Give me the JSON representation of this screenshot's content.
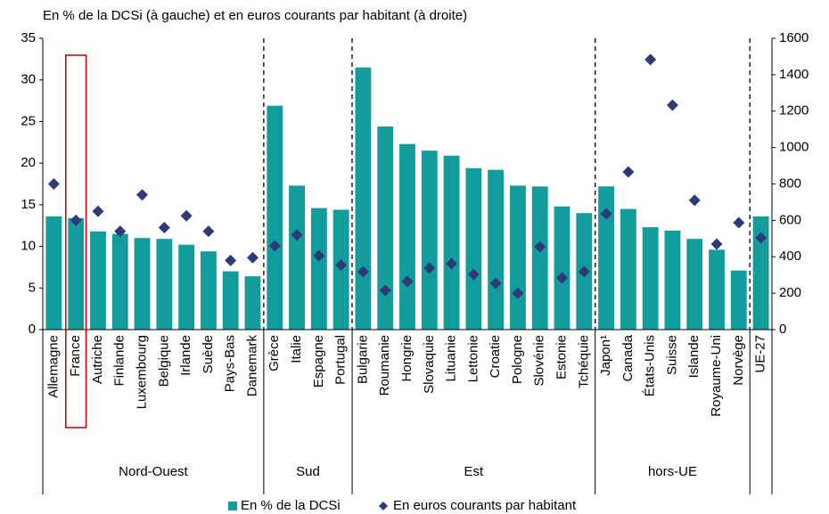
{
  "chart_data": {
    "type": "bar",
    "title": "En % de la DCSi (à gauche) et en euros courants par habitant (à droite)",
    "categories": [
      "Allemagne",
      "France",
      "Autriche",
      "Finlande",
      "Luxembourg",
      "Belgique",
      "Irlande",
      "Suède",
      "Pays-Bas",
      "Danemark",
      "Grèce",
      "Italie",
      "Espagne",
      "Portugal",
      "Bulgarie",
      "Roumanie",
      "Hongrie",
      "Slovaquie",
      "Lituanie",
      "Lettonie",
      "Croatie",
      "Pologne",
      "Slovénie",
      "Estonie",
      "Tchéquie",
      "Japon¹",
      "Canada",
      "États-Unis",
      "Suisse",
      "Islande",
      "Royaume-Uni",
      "Norvège",
      "UE-27"
    ],
    "groups": [
      {
        "name": "Nord-Ouest",
        "size": 10
      },
      {
        "name": "Sud",
        "size": 4
      },
      {
        "name": "Est",
        "size": 11
      },
      {
        "name": "hors-UE",
        "size": 7
      },
      {
        "size": 1
      }
    ],
    "series": [
      {
        "name": "En % de la DCSi",
        "type": "bar",
        "color": "#139c9c",
        "axis": "y",
        "values": [
          13.6,
          13.4,
          11.8,
          11.5,
          11.0,
          10.9,
          10.2,
          9.4,
          7.0,
          6.4,
          26.9,
          17.3,
          14.6,
          14.4,
          31.5,
          24.4,
          22.3,
          21.5,
          20.9,
          19.4,
          19.2,
          17.3,
          17.2,
          14.8,
          14.0,
          17.2,
          14.5,
          12.3,
          11.9,
          10.9,
          9.6,
          7.1,
          13.6
        ]
      },
      {
        "name": "En euros courants par habitant",
        "type": "scatter",
        "color": "#2e3a78",
        "axis": "y2",
        "values": [
          800,
          600,
          650,
          540,
          740,
          560,
          625,
          540,
          380,
          395,
          460,
          520,
          406,
          355,
          318,
          215,
          264,
          338,
          362,
          303,
          254,
          200,
          455,
          284,
          318,
          636,
          866,
          1483,
          1233,
          710,
          470,
          587,
          504
        ]
      }
    ],
    "ylim": [
      0,
      35
    ],
    "yticks": [
      0,
      5,
      10,
      15,
      20,
      25,
      30,
      35
    ],
    "y2lim": [
      0,
      1600
    ],
    "y2ticks": [
      0,
      200,
      400,
      600,
      800,
      1000,
      1200,
      1400,
      1600
    ],
    "highlight": 1,
    "highlight_color": "#c00000"
  }
}
